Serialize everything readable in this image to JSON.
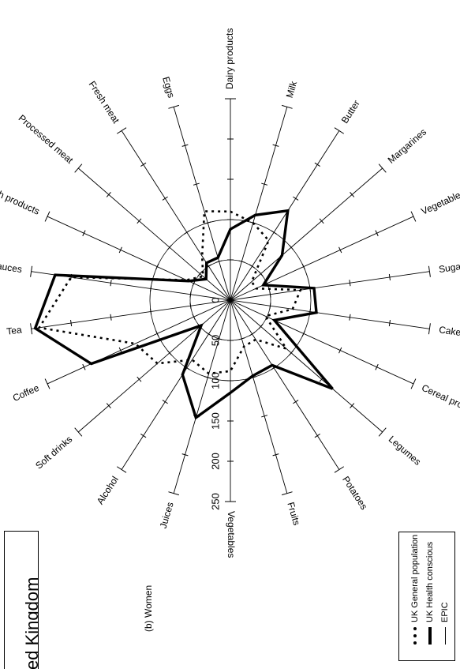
{
  "figure": {
    "country_title": "ed Kingdom",
    "panel_label": "(b)  Women"
  },
  "legend": {
    "items": [
      {
        "label": "UK General population",
        "style": "dotted"
      },
      {
        "label": "UK Health conscious",
        "style": "thick"
      },
      {
        "label": "EPIC",
        "style": "thin"
      }
    ]
  },
  "chart_data": {
    "type": "radar",
    "title": "",
    "orientation": "rotated 90 degrees counter-clockwise",
    "radial_ticks": [
      "0",
      "50",
      "100",
      "150",
      "200",
      "250"
    ],
    "r_range": [
      0,
      250
    ],
    "reference_circle": 100,
    "categories": [
      "Dairy products",
      "Milk",
      "Butter",
      "Margarines",
      "Vegetable oils",
      "Sugar products",
      "Cakes",
      "Cereal products",
      "Legumes",
      "Potatoes",
      "Fruits",
      "Vegetables",
      "Juices",
      "Alcohol",
      "Soft drinks",
      "Coffee",
      "Tea",
      "Sauces",
      "Fish products",
      "Processed meat",
      "Fresh meat",
      "Eggs"
    ],
    "series": [
      {
        "name": "UK General population",
        "style": "dotted",
        "values": [
          110,
          100,
          88,
          35,
          35,
          88,
          78,
          48,
          92,
          58,
          60,
          88,
          95,
          88,
          120,
          130,
          240,
          200,
          60,
          45,
          65,
          115
        ]
      },
      {
        "name": "UK Health conscious",
        "style": "thick",
        "values": [
          88,
          110,
          132,
          85,
          45,
          105,
          108,
          60,
          168,
          96,
          98,
          115,
          152,
          110,
          48,
          190,
          245,
          220,
          57,
          40,
          55,
          55
        ]
      },
      {
        "name": "EPIC",
        "style": "thin",
        "values": [
          100,
          100,
          100,
          100,
          100,
          100,
          100,
          100,
          100,
          100,
          100,
          100,
          100,
          100,
          100,
          100,
          100,
          100,
          100,
          100,
          100,
          100
        ]
      }
    ]
  }
}
